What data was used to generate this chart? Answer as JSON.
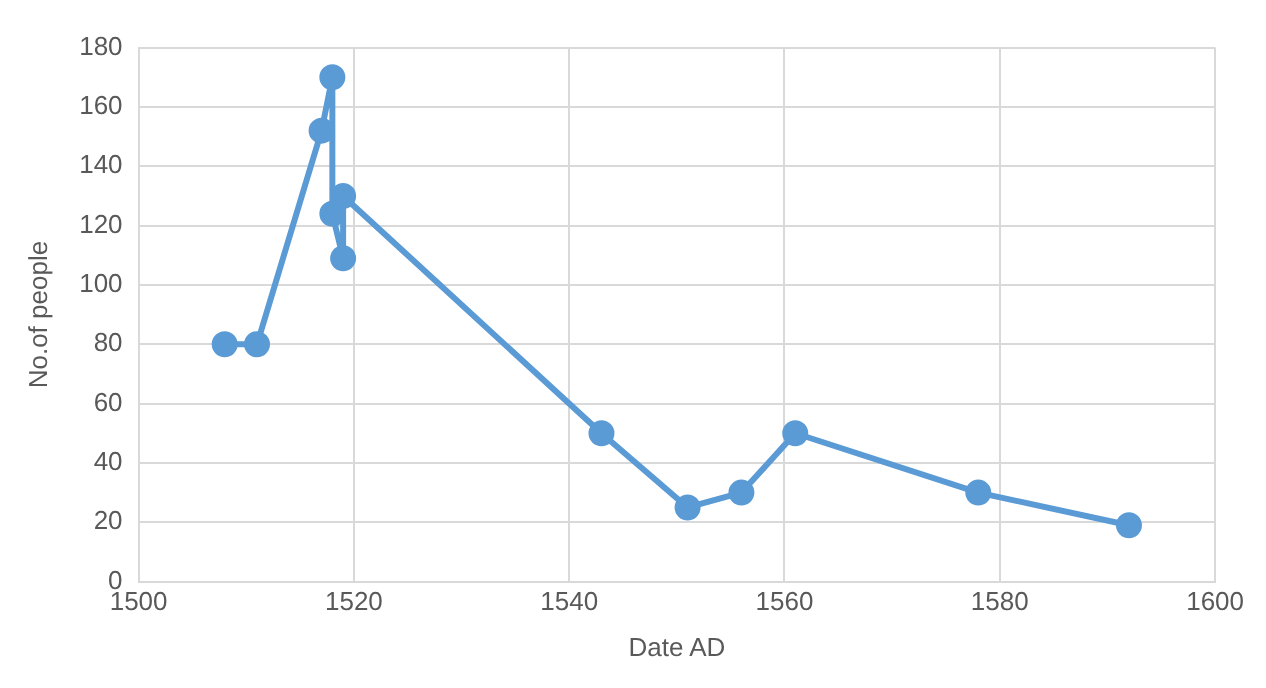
{
  "chart_data": {
    "type": "scatter",
    "xlabel": "Date AD",
    "ylabel": "No.of people",
    "x": [
      1508,
      1511,
      1517,
      1518,
      1518,
      1519,
      1519,
      1543,
      1551,
      1556,
      1561,
      1578,
      1592
    ],
    "series": [
      {
        "type": "line",
        "color": "#5b9bd5",
        "values": [
          80,
          80,
          152,
          170,
          124,
          109,
          130,
          50,
          25,
          30,
          50,
          30,
          19
        ]
      }
    ],
    "xlim": [
      1500,
      1600
    ],
    "xticks": [
      1500,
      1520,
      1540,
      1560,
      1580,
      1600
    ],
    "ylim": [
      0,
      180
    ],
    "yticks": [
      0,
      20,
      40,
      60,
      80,
      100,
      120,
      140,
      160,
      180
    ],
    "grid": true,
    "marker": "circle",
    "line_style": "solid",
    "legend": false
  }
}
